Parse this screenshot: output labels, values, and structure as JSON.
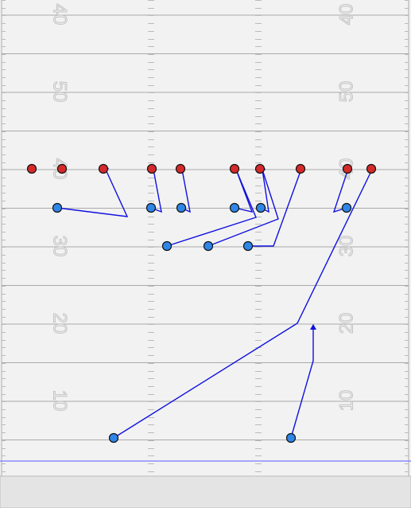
{
  "yard_numbers": {
    "left": [
      "40",
      "50",
      "40",
      "30",
      "20",
      "10"
    ],
    "right": [
      "40",
      "50",
      "40",
      "30",
      "20",
      "10"
    ]
  }
}
